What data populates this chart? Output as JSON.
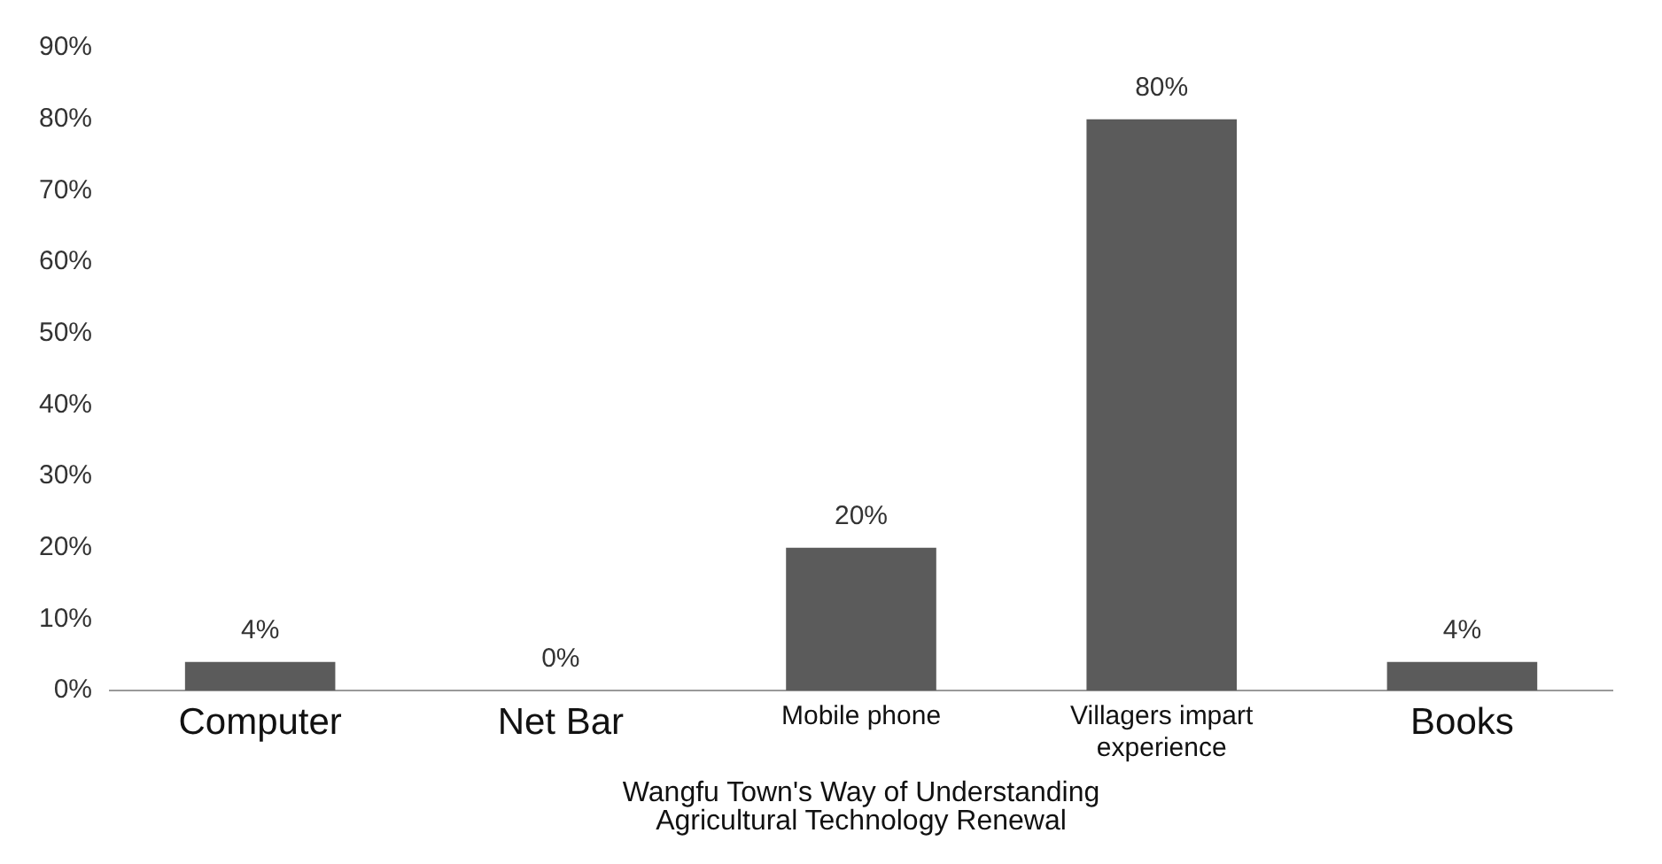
{
  "chart_data": {
    "type": "bar",
    "xlabel": "Wangfu Town's Way of Understanding\nAgricultural Technology Renewal",
    "categories": [
      "Computer",
      "Net Bar",
      "Mobile phone",
      "Villagers impart experience",
      "Books"
    ],
    "values": [
      4,
      0,
      20,
      80,
      4
    ],
    "value_labels": [
      "4%",
      "0%",
      "20%",
      "80%",
      "4%"
    ],
    "color": "#5b5b5b",
    "ylim": [
      0,
      90
    ],
    "yticks": [
      {
        "value": 0,
        "label": "0%"
      },
      {
        "value": 10,
        "label": "10%"
      },
      {
        "value": 20,
        "label": "20%"
      },
      {
        "value": 30,
        "label": "30%"
      },
      {
        "value": 40,
        "label": "40%"
      },
      {
        "value": 50,
        "label": "50%"
      },
      {
        "value": 60,
        "label": "60%"
      },
      {
        "value": 70,
        "label": "70%"
      },
      {
        "value": 80,
        "label": "80%"
      },
      {
        "value": 90,
        "label": "90%"
      }
    ],
    "grid": false,
    "legend": false
  }
}
